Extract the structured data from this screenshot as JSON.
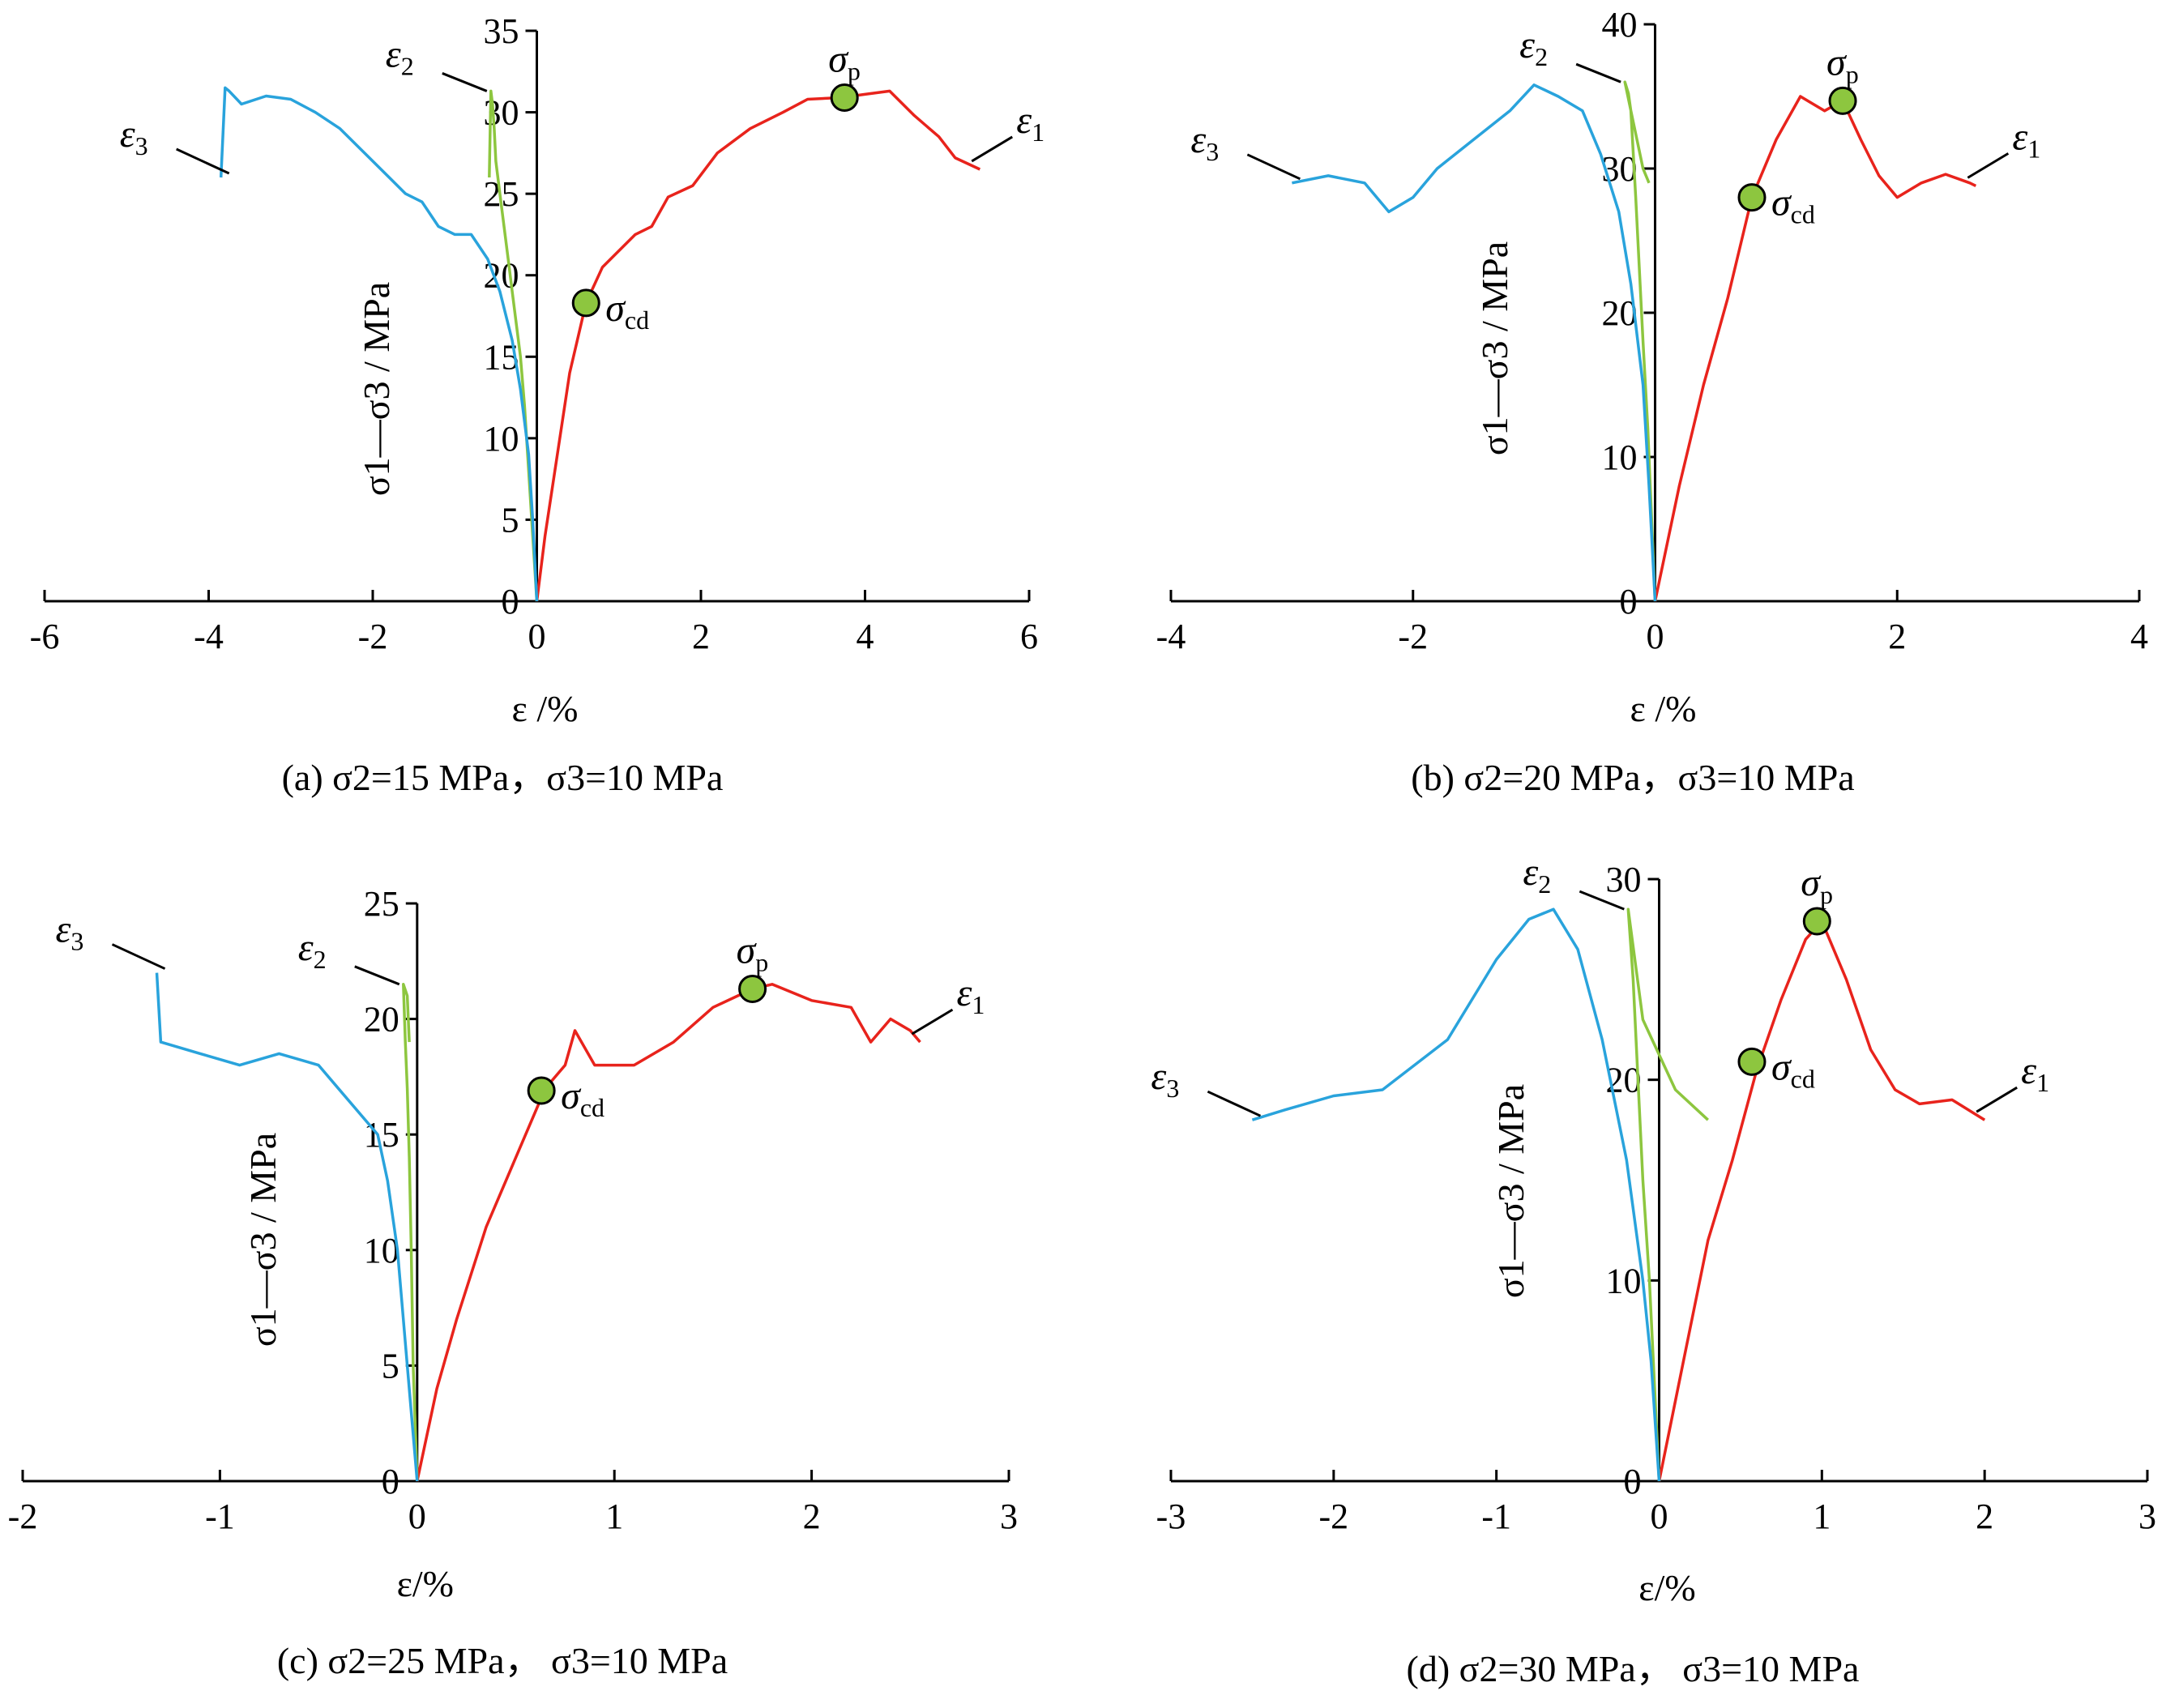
{
  "figure": {
    "panels": [
      {
        "caption": "(a) σ2=15 MPa，σ3=10 MPa",
        "ylabel": "σ1—σ3 / MPa",
        "xlabel": "ε /%",
        "xlim": [
          -6,
          6
        ],
        "ylim": [
          0,
          35
        ],
        "xticks": [
          -6,
          -4,
          -2,
          0,
          2,
          4,
          6
        ],
        "yticks": [
          0,
          5,
          10,
          15,
          20,
          25,
          30,
          35
        ],
        "labels": [
          "ε1",
          "ε2",
          "ε3",
          "σp",
          "σcd"
        ]
      },
      {
        "caption": "(b) σ2=20 MPa，σ3=10 MPa",
        "ylabel": "σ1—σ3 / MPa",
        "xlabel": "ε /%",
        "xlim": [
          -4,
          4
        ],
        "ylim": [
          0,
          40
        ],
        "xticks": [
          -4,
          -2,
          0,
          2,
          4
        ],
        "yticks": [
          0,
          10,
          20,
          30,
          40
        ],
        "labels": [
          "ε1",
          "ε2",
          "ε3",
          "σp",
          "σcd"
        ]
      },
      {
        "caption": "(c) σ2=25 MPa， σ3=10 MPa",
        "ylabel": "σ1—σ3 / MPa",
        "xlabel": "ε/%",
        "xlim": [
          -2,
          3
        ],
        "ylim": [
          0,
          25
        ],
        "xticks": [
          -2,
          -1,
          0,
          1,
          2,
          3
        ],
        "yticks": [
          0,
          5,
          10,
          15,
          20,
          25
        ],
        "labels": [
          "ε1",
          "ε2",
          "ε3",
          "σp",
          "σcd"
        ]
      },
      {
        "caption": "(d) σ2=30 MPa， σ3=10 MPa",
        "ylabel": "σ1—σ3 / MPa",
        "xlabel": "ε/%",
        "xlim": [
          -3,
          3
        ],
        "ylim": [
          0,
          30
        ],
        "xticks": [
          -3,
          -2,
          -1,
          0,
          1,
          2,
          3
        ],
        "yticks": [
          0,
          10,
          20,
          30
        ],
        "labels": [
          "ε1",
          "ε2",
          "ε3",
          "σp",
          "σcd"
        ]
      }
    ]
  },
  "colors": {
    "eps1": "#e8231c",
    "eps2": "#8dc63f",
    "eps3": "#29a3dc",
    "marker_fill": "#8dc63f",
    "axis": "#000000"
  },
  "chart_data": [
    {
      "type": "line",
      "xlabel": "ε /%",
      "ylabel": "σ1—σ3 / MPa",
      "xlim": [
        -6,
        6
      ],
      "ylim": [
        0,
        35
      ],
      "series": [
        {
          "name": "ε1",
          "x": [
            0,
            0.1,
            0.25,
            0.4,
            0.6,
            0.8,
            1.0,
            1.2,
            1.4,
            1.6,
            1.9,
            2.2,
            2.6,
            3.0,
            3.3,
            3.7,
            4.0,
            4.3,
            4.6,
            4.9,
            5.1,
            5.4
          ],
          "y": [
            0,
            4,
            9,
            14,
            18.3,
            20.5,
            21.5,
            22.5,
            23,
            24.8,
            25.5,
            27.5,
            29,
            30,
            30.8,
            30.9,
            31.1,
            31.3,
            29.8,
            28.5,
            27.2,
            26.5
          ]
        },
        {
          "name": "ε2",
          "x": [
            0,
            -0.05,
            -0.1,
            -0.15,
            -0.2,
            -0.25,
            -0.3,
            -0.35,
            -0.4,
            -0.45,
            -0.5,
            -0.52,
            -0.54,
            -0.56,
            -0.58
          ],
          "y": [
            0,
            4,
            8,
            12,
            15,
            17,
            19,
            21,
            23,
            25,
            27,
            29,
            30.5,
            31.3,
            26
          ]
        },
        {
          "name": "ε3",
          "x": [
            0,
            -0.05,
            -0.1,
            -0.2,
            -0.3,
            -0.45,
            -0.6,
            -0.8,
            -1.0,
            -1.2,
            -1.4,
            -1.6,
            -1.8,
            -2.1,
            -2.4,
            -2.7,
            -3.0,
            -3.3,
            -3.6,
            -3.75,
            -3.8,
            -3.85
          ],
          "y": [
            0,
            5,
            9,
            13,
            16,
            19,
            21,
            22.5,
            22.5,
            23,
            24.5,
            25,
            26,
            27.5,
            29,
            30,
            30.8,
            31,
            30.5,
            31.3,
            31.5,
            26
          ]
        }
      ],
      "markers": [
        {
          "name": "σp",
          "x": 3.75,
          "y": 30.9
        },
        {
          "name": "σcd",
          "x": 0.6,
          "y": 18.3
        }
      ]
    },
    {
      "type": "line",
      "xlabel": "ε /%",
      "ylabel": "σ1—σ3 / MPa",
      "xlim": [
        -4,
        4
      ],
      "ylim": [
        0,
        40
      ],
      "series": [
        {
          "name": "ε1",
          "x": [
            0,
            0.2,
            0.4,
            0.6,
            0.8,
            1.0,
            1.2,
            1.4,
            1.55,
            1.7,
            1.85,
            2.0,
            2.2,
            2.4,
            2.6,
            2.65
          ],
          "y": [
            0,
            8,
            15,
            21,
            28,
            32,
            35,
            34,
            34.7,
            32,
            29.5,
            28,
            29,
            29.6,
            29,
            28.8
          ]
        },
        {
          "name": "ε2",
          "x": [
            0,
            -0.03,
            -0.06,
            -0.1,
            -0.13,
            -0.16,
            -0.18,
            -0.2,
            -0.22,
            -0.25,
            -0.1,
            -0.05
          ],
          "y": [
            0,
            6,
            12,
            18,
            23,
            28,
            31,
            34,
            35.2,
            36,
            30,
            29
          ]
        },
        {
          "name": "ε3",
          "x": [
            0,
            -0.05,
            -0.1,
            -0.2,
            -0.3,
            -0.45,
            -0.6,
            -0.8,
            -1.0,
            -1.2,
            -1.5,
            -1.8,
            -2.0,
            -2.2,
            -2.4,
            -2.7,
            -3.0
          ],
          "y": [
            0,
            8,
            15,
            22,
            27,
            31,
            34,
            35,
            35.8,
            34,
            32,
            30,
            28,
            27,
            29,
            29.5,
            29
          ]
        }
      ],
      "markers": [
        {
          "name": "σp",
          "x": 1.55,
          "y": 34.7
        },
        {
          "name": "σcd",
          "x": 0.8,
          "y": 28
        }
      ]
    },
    {
      "type": "line",
      "xlabel": "ε/%",
      "ylabel": "σ1—σ3 / MPa",
      "xlim": [
        -2,
        3
      ],
      "ylim": [
        0,
        25
      ],
      "series": [
        {
          "name": "ε1",
          "x": [
            0,
            0.1,
            0.2,
            0.35,
            0.5,
            0.65,
            0.75,
            0.8,
            0.9,
            1.1,
            1.3,
            1.5,
            1.7,
            1.8,
            2.0,
            2.2,
            2.3,
            2.4,
            2.5,
            2.55
          ],
          "y": [
            0,
            4,
            7,
            11,
            14,
            17,
            18,
            19.5,
            18,
            18,
            19,
            20.5,
            21.3,
            21.5,
            20.8,
            20.5,
            19,
            20,
            19.5,
            19
          ]
        },
        {
          "name": "ε2",
          "x": [
            0,
            -0.02,
            -0.03,
            -0.04,
            -0.05,
            -0.06,
            -0.07,
            -0.05,
            -0.04
          ],
          "y": [
            0,
            5,
            10,
            14,
            17,
            19,
            21.5,
            21,
            19
          ]
        },
        {
          "name": "ε3",
          "x": [
            0,
            -0.05,
            -0.1,
            -0.15,
            -0.2,
            -0.3,
            -0.4,
            -0.5,
            -0.7,
            -0.9,
            -1.1,
            -1.3,
            -1.32
          ],
          "y": [
            0,
            5,
            10,
            13,
            15,
            16,
            17,
            18,
            18.5,
            18,
            18.5,
            19,
            22
          ]
        }
      ],
      "markers": [
        {
          "name": "σp",
          "x": 1.7,
          "y": 21.3
        },
        {
          "name": "σcd",
          "x": 0.63,
          "y": 16.9
        }
      ]
    },
    {
      "type": "line",
      "xlabel": "ε/%",
      "ylabel": "σ1—σ3 / MPa",
      "xlim": [
        -3,
        3
      ],
      "ylim": [
        0,
        30
      ],
      "series": [
        {
          "name": "ε1",
          "x": [
            0,
            0.15,
            0.3,
            0.45,
            0.6,
            0.75,
            0.9,
            1.0,
            1.15,
            1.3,
            1.45,
            1.6,
            1.8,
            2.0
          ],
          "y": [
            0,
            6,
            12,
            16,
            20.5,
            24,
            27,
            27.9,
            25,
            21.5,
            19.5,
            18.8,
            19,
            18
          ]
        },
        {
          "name": "ε2",
          "x": [
            0,
            -0.03,
            -0.06,
            -0.1,
            -0.13,
            -0.16,
            -0.19,
            -0.1,
            0.1,
            0.3
          ],
          "y": [
            0,
            5,
            10,
            15,
            20,
            25,
            28.5,
            23,
            19.5,
            18
          ]
        },
        {
          "name": "ε3",
          "x": [
            0,
            -0.05,
            -0.1,
            -0.2,
            -0.35,
            -0.5,
            -0.65,
            -0.8,
            -1.0,
            -1.3,
            -1.7,
            -2.0,
            -2.3,
            -2.5
          ],
          "y": [
            0,
            6,
            10,
            16,
            22,
            26.5,
            28.5,
            28,
            26,
            22,
            19.5,
            19.2,
            18.5,
            18
          ]
        }
      ],
      "markers": [
        {
          "name": "σp",
          "x": 0.97,
          "y": 27.9
        },
        {
          "name": "σcd",
          "x": 0.57,
          "y": 20.9
        }
      ]
    }
  ]
}
